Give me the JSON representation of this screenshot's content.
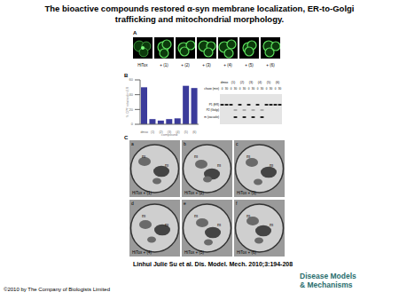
{
  "title": "The bioactive compounds restored α-syn membrane localization, ER-to-Golgi trafficking and mitochondrial morphology.",
  "panel_A": {
    "label": "A",
    "images": [
      "HiTox",
      "+ (1)",
      "+ (2)",
      "+ (3)",
      "+ (4)",
      "+ (5)",
      "+ (6)"
    ]
  },
  "panel_B": {
    "label": "B"
  },
  "chart_data": {
    "type": "bar",
    "y_label": "% CPY retained in ER",
    "x_label": "compound",
    "categories": [
      "dmso",
      "(1)",
      "(2)",
      "(3)",
      "(4)",
      "(5)",
      "(6)"
    ],
    "values": [
      50,
      7,
      5,
      7,
      8,
      52,
      49
    ],
    "color": "#3b3b9b",
    "ylim": [
      0,
      60
    ],
    "yticks": [
      0,
      20,
      40,
      60
    ],
    "grid": false
  },
  "gel": {
    "lanes": [
      "dmso",
      "(1)",
      "(2)",
      "(3)",
      "(4)",
      "(5)",
      "(6)"
    ],
    "chase_label": "chase (min)",
    "chase": [
      0,
      30
    ],
    "bands": [
      "P1 (ER)",
      "P2 (Golgi)",
      "m (vacuole)"
    ]
  },
  "panel_C": {
    "label": "C",
    "images": [
      {
        "letter": "a",
        "label": "HiTox + (1)",
        "marks": [
          "m",
          "m"
        ]
      },
      {
        "letter": "b",
        "label": "HiTox + (2)",
        "marks": [
          "m",
          "m"
        ]
      },
      {
        "letter": "c",
        "label": "HiTox + (3)",
        "marks": [
          "m",
          "m"
        ]
      },
      {
        "letter": "d",
        "label": "HiTox + (4)",
        "marks": [
          "m",
          "m"
        ]
      },
      {
        "letter": "e",
        "label": "HiTox + (5)",
        "marks": [
          "m",
          "m"
        ]
      },
      {
        "letter": "f",
        "label": "HiTox + (6)",
        "marks": [
          "m",
          "m"
        ]
      }
    ]
  },
  "citation": "Linhui Julie Su et al. Dis. Model. Mech. 2010;3:194-208",
  "journal": [
    "Disease Models",
    "& Mechanisms"
  ],
  "copyright": "©2010 by The Company of Biologists Limited"
}
